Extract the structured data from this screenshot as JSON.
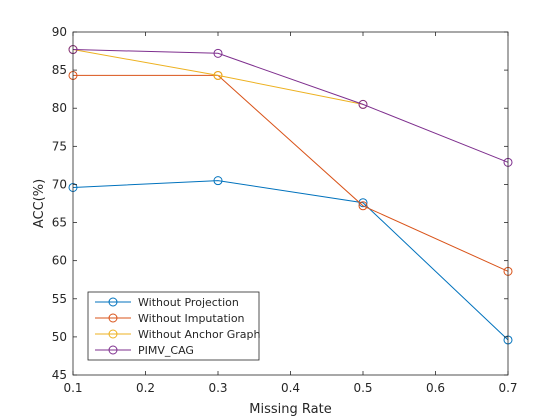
{
  "chart_data": {
    "type": "line",
    "title": "",
    "xlabel": "Missing Rate",
    "ylabel": "ACC(%)",
    "xlim": [
      0.1,
      0.7
    ],
    "ylim": [
      45,
      90
    ],
    "xticks": [
      0.1,
      0.2,
      0.3,
      0.4,
      0.5,
      0.6,
      0.7
    ],
    "xtick_labels": [
      "0.1",
      "0.2",
      "0.3",
      "0.4",
      "0.5",
      "0.6",
      "0.7"
    ],
    "yticks": [
      45,
      50,
      55,
      60,
      65,
      70,
      75,
      80,
      85,
      90
    ],
    "ytick_labels": [
      "45",
      "50",
      "55",
      "60",
      "65",
      "70",
      "75",
      "80",
      "85",
      "90"
    ],
    "grid": false,
    "legend_position": "bottom-left",
    "marker": "circle",
    "series": [
      {
        "name": "Without Projection",
        "color": "#0072BD",
        "x": [
          0.1,
          0.3,
          0.5,
          0.7
        ],
        "y": [
          69.6,
          70.5,
          67.6,
          49.6
        ]
      },
      {
        "name": "Without Imputation",
        "color": "#D95319",
        "x": [
          0.1,
          0.3,
          0.5,
          0.7
        ],
        "y": [
          84.3,
          84.3,
          67.2,
          58.6
        ]
      },
      {
        "name": "Without Anchor Graph",
        "color": "#EDB120",
        "x": [
          0.1,
          0.3,
          0.5
        ],
        "y": [
          87.7,
          84.3,
          80.5
        ]
      },
      {
        "name": "PIMV_CAG",
        "color": "#7E2F8E",
        "x": [
          0.1,
          0.3,
          0.5,
          0.7
        ],
        "y": [
          87.7,
          87.2,
          80.5,
          72.9
        ]
      }
    ]
  }
}
